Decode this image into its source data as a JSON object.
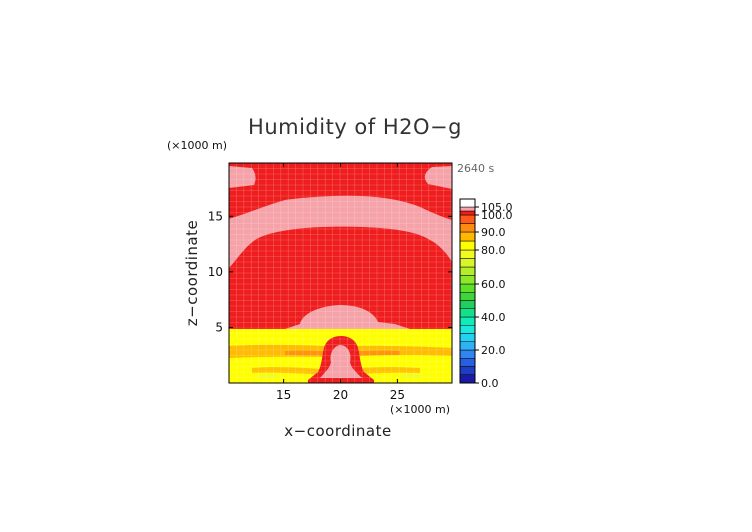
{
  "chart_data": {
    "type": "heatmap",
    "title": "Humidity of H2O−g",
    "xlabel": "x−coordinate",
    "ylabel": "z−coordinate",
    "x_unit": "(×1000 m)",
    "y_unit": "(×1000 m)",
    "time_label": "2640 s",
    "xlim": [
      10.2,
      29.8
    ],
    "ylim": [
      0,
      19.8
    ],
    "x_ticks": [
      15,
      20,
      25
    ],
    "y_ticks": [
      5,
      10,
      15
    ],
    "grid": true,
    "colorbar": {
      "ticks": [
        0.0,
        20.0,
        40.0,
        60.0,
        80.0,
        90.0,
        100.0,
        105.0
      ],
      "tick_labels": [
        "0.0",
        "20.0",
        "40.0",
        "60.0",
        "80.0",
        "90.0",
        "100.0",
        "105.0"
      ],
      "bins": [
        {
          "from": 0,
          "to": 5,
          "color": "#1a1aa6"
        },
        {
          "from": 5,
          "to": 10,
          "color": "#1f3cc4"
        },
        {
          "from": 10,
          "to": 15,
          "color": "#2660e0"
        },
        {
          "from": 15,
          "to": 20,
          "color": "#2f86f0"
        },
        {
          "from": 20,
          "to": 25,
          "color": "#2fb2f5"
        },
        {
          "from": 25,
          "to": 30,
          "color": "#22d2f2"
        },
        {
          "from": 30,
          "to": 35,
          "color": "#1ae8dd"
        },
        {
          "from": 35,
          "to": 40,
          "color": "#10ecb8"
        },
        {
          "from": 40,
          "to": 45,
          "color": "#15e08a"
        },
        {
          "from": 45,
          "to": 50,
          "color": "#1fd060"
        },
        {
          "from": 50,
          "to": 55,
          "color": "#3ed43a"
        },
        {
          "from": 55,
          "to": 60,
          "color": "#5ee02a"
        },
        {
          "from": 60,
          "to": 65,
          "color": "#8ee82a"
        },
        {
          "from": 65,
          "to": 70,
          "color": "#b4ee2a"
        },
        {
          "from": 70,
          "to": 75,
          "color": "#d8f52a"
        },
        {
          "from": 75,
          "to": 80,
          "color": "#f2fb20"
        },
        {
          "from": 80,
          "to": 85,
          "color": "#ffff00"
        },
        {
          "from": 85,
          "to": 90,
          "color": "#ffb800"
        },
        {
          "from": 90,
          "to": 95,
          "color": "#ff8a10"
        },
        {
          "from": 95,
          "to": 100,
          "color": "#ff5a1a"
        },
        {
          "from": 100,
          "to": 102.5,
          "color": "#ef1d1d"
        },
        {
          "from": 102.5,
          "to": 105,
          "color": "#f5a3a8"
        },
        {
          "from": 105,
          "to": 110,
          "color": "#ffffff"
        }
      ]
    }
  }
}
